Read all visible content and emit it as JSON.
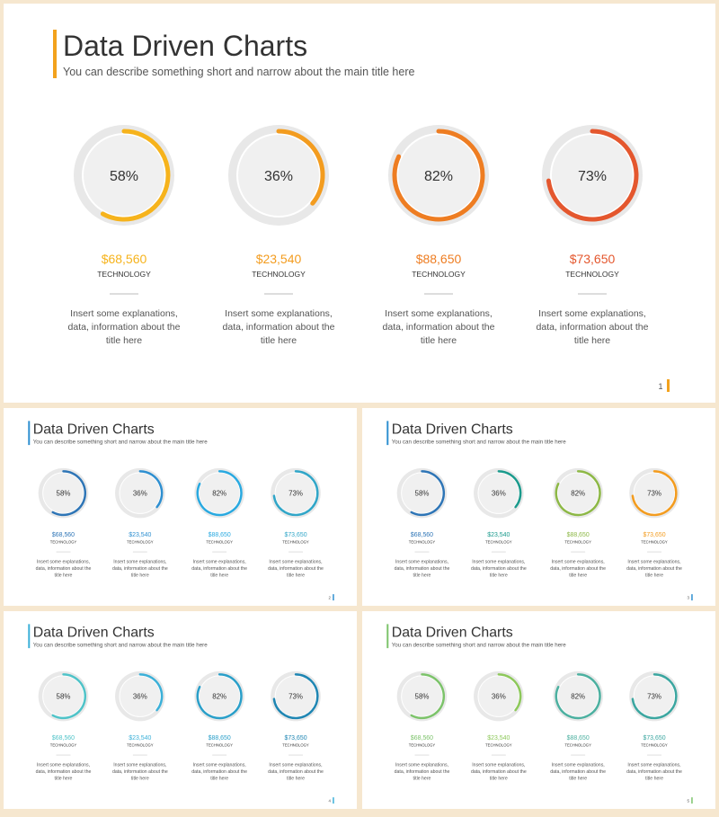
{
  "slides": [
    {
      "title": "Data Driven Charts",
      "subtitle": "You can describe something short and narrow about the main title here",
      "page": "1",
      "accent": "#f3a21d",
      "items": [
        {
          "value": 58,
          "label": "58%",
          "amount": "$68,560",
          "category": "TECHNOLOGY",
          "description": [
            "Insert some explanations,",
            "data, information about the",
            "title here"
          ],
          "color": "#f6b31c"
        },
        {
          "value": 36,
          "label": "36%",
          "amount": "$23,540",
          "category": "TECHNOLOGY",
          "description": [
            "Insert some explanations,",
            "data, information about the",
            "title here"
          ],
          "color": "#f39c1f"
        },
        {
          "value": 82,
          "label": "82%",
          "amount": "$88,650",
          "category": "TECHNOLOGY",
          "description": [
            "Insert some explanations,",
            "data, information about the",
            "title here"
          ],
          "color": "#ee7d22"
        },
        {
          "value": 73,
          "label": "73%",
          "amount": "$73,650",
          "category": "TECHNOLOGY",
          "description": [
            "Insert some explanations,",
            "data, information about the",
            "title here"
          ],
          "color": "#e4572e"
        }
      ]
    },
    {
      "title": "Data Driven Charts",
      "subtitle": "You can describe something short and narrow about the main title here",
      "page": "2",
      "accent": "#2e8fd0",
      "items": [
        {
          "value": 58,
          "label": "58%",
          "amount": "$68,560",
          "category": "TECHNOLOGY",
          "description": [
            "Insert some explanations,",
            "data, information about the",
            "title here"
          ],
          "color": "#2e75b6"
        },
        {
          "value": 36,
          "label": "36%",
          "amount": "$23,540",
          "category": "TECHNOLOGY",
          "description": [
            "Insert some explanations,",
            "data, information about the",
            "title here"
          ],
          "color": "#2e8fd0"
        },
        {
          "value": 82,
          "label": "82%",
          "amount": "$88,650",
          "category": "TECHNOLOGY",
          "description": [
            "Insert some explanations,",
            "data, information about the",
            "title here"
          ],
          "color": "#29a9e0"
        },
        {
          "value": 73,
          "label": "73%",
          "amount": "$73,650",
          "category": "TECHNOLOGY",
          "description": [
            "Insert some explanations,",
            "data, information about the",
            "title here"
          ],
          "color": "#31a6c8"
        }
      ]
    },
    {
      "title": "Data Driven Charts",
      "subtitle": "You can describe something short and narrow about the main title here",
      "page": "3",
      "accent": "#2e8fd0",
      "items": [
        {
          "value": 58,
          "label": "58%",
          "amount": "$68,560",
          "category": "TECHNOLOGY",
          "description": [
            "Insert some explanations,",
            "data, information about the",
            "title here"
          ],
          "color": "#2e75b6"
        },
        {
          "value": 36,
          "label": "36%",
          "amount": "$23,540",
          "category": "TECHNOLOGY",
          "description": [
            "Insert some explanations,",
            "data, information about the",
            "title here"
          ],
          "color": "#1a9a8c"
        },
        {
          "value": 82,
          "label": "82%",
          "amount": "$88,650",
          "category": "TECHNOLOGY",
          "description": [
            "Insert some explanations,",
            "data, information about the",
            "title here"
          ],
          "color": "#8db846"
        },
        {
          "value": 73,
          "label": "73%",
          "amount": "$73,650",
          "category": "TECHNOLOGY",
          "description": [
            "Insert some explanations,",
            "data, information about the",
            "title here"
          ],
          "color": "#f39c1f"
        }
      ]
    },
    {
      "title": "Data Driven Charts",
      "subtitle": "You can describe something short and narrow about the main title here",
      "page": "4",
      "accent": "#3bb0d8",
      "items": [
        {
          "value": 58,
          "label": "58%",
          "amount": "$68,560",
          "category": "TECHNOLOGY",
          "description": [
            "Insert some explanations,",
            "data, information about the",
            "title here"
          ],
          "color": "#4fc3c8"
        },
        {
          "value": 36,
          "label": "36%",
          "amount": "$23,540",
          "category": "TECHNOLOGY",
          "description": [
            "Insert some explanations,",
            "data, information about the",
            "title here"
          ],
          "color": "#3bb0d8"
        },
        {
          "value": 82,
          "label": "82%",
          "amount": "$88,650",
          "category": "TECHNOLOGY",
          "description": [
            "Insert some explanations,",
            "data, information about the",
            "title here"
          ],
          "color": "#2a9fc9"
        },
        {
          "value": 73,
          "label": "73%",
          "amount": "$73,650",
          "category": "TECHNOLOGY",
          "description": [
            "Insert some explanations,",
            "data, information about the",
            "title here"
          ],
          "color": "#1f86b3"
        }
      ]
    },
    {
      "title": "Data Driven Charts",
      "subtitle": "You can describe something short and narrow about the main title here",
      "page": "5",
      "accent": "#7cc36a",
      "items": [
        {
          "value": 58,
          "label": "58%",
          "amount": "$68,560",
          "category": "TECHNOLOGY",
          "description": [
            "Insert some explanations,",
            "data, information about the",
            "title here"
          ],
          "color": "#7cc36a"
        },
        {
          "value": 36,
          "label": "36%",
          "amount": "$23,540",
          "category": "TECHNOLOGY",
          "description": [
            "Insert some explanations,",
            "data, information about the",
            "title here"
          ],
          "color": "#8dc85a"
        },
        {
          "value": 82,
          "label": "82%",
          "amount": "$88,650",
          "category": "TECHNOLOGY",
          "description": [
            "Insert some explanations,",
            "data, information about the",
            "title here"
          ],
          "color": "#4cb0a0"
        },
        {
          "value": 73,
          "label": "73%",
          "amount": "$73,650",
          "category": "TECHNOLOGY",
          "description": [
            "Insert some explanations,",
            "data, information about the",
            "title here"
          ],
          "color": "#3ba6a0"
        }
      ]
    }
  ]
}
